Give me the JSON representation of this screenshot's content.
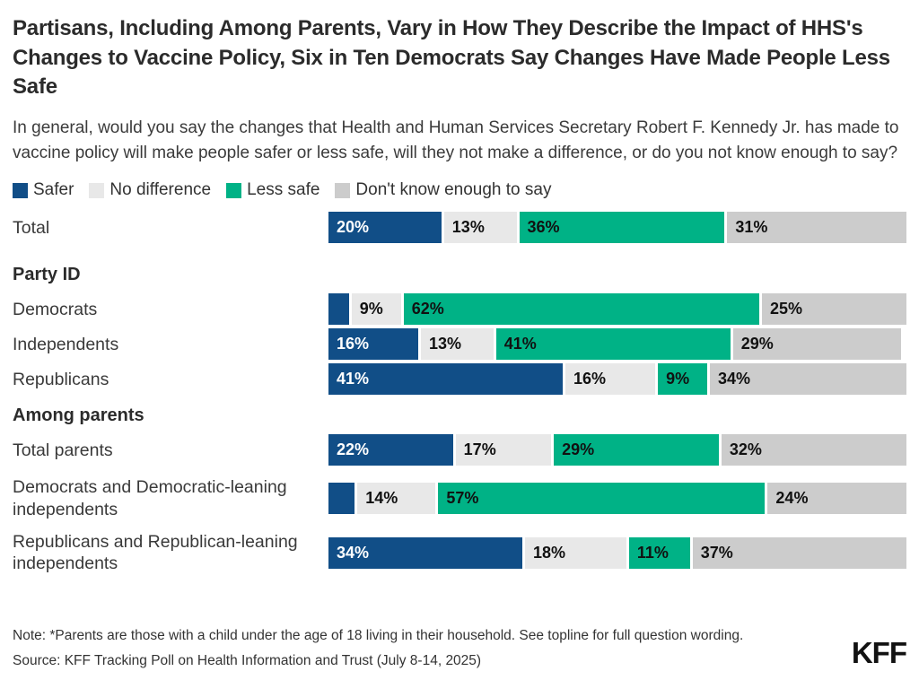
{
  "title": "Partisans, Including Among Parents, Vary in How They Describe the Impact of HHS's Changes to Vaccine Policy, Six in Ten Democrats Say Changes Have Made People Less Safe",
  "subtitle": "In general, would you say the changes that Health and Human Services Secretary Robert F. Kennedy Jr. has made to vaccine policy will make people safer or less safe, will they not make a difference, or do you not know enough to say?",
  "legend": [
    {
      "label": "Safer",
      "color": "#114e87",
      "text_color": "#ffffff"
    },
    {
      "label": "No difference",
      "color": "#e8e8e8",
      "text_color": "#111111"
    },
    {
      "label": "Less safe",
      "color": "#00b286",
      "text_color": "#111111"
    },
    {
      "label": "Don't know enough to say",
      "color": "#cccccc",
      "text_color": "#111111"
    }
  ],
  "chart_data": {
    "type": "bar",
    "orientation": "horizontal-stacked",
    "xlim": [
      0,
      100
    ],
    "units": "percent",
    "series_names": [
      "Safer",
      "No difference",
      "Less safe",
      "Don't know enough to say"
    ],
    "series_colors": [
      "#114e87",
      "#e8e8e8",
      "#00b286",
      "#cccccc"
    ],
    "rows": [
      {
        "kind": "bar",
        "category": "Total",
        "values": [
          20,
          13,
          36,
          31
        ],
        "labels": [
          "20%",
          "13%",
          "36%",
          "31%"
        ],
        "spacer_after": "md"
      },
      {
        "kind": "header",
        "category": "Party ID"
      },
      {
        "kind": "bar",
        "category": "Democrats",
        "values": [
          4,
          9,
          62,
          25
        ],
        "labels": [
          "",
          "9%",
          "62%",
          "25%"
        ]
      },
      {
        "kind": "bar",
        "category": "Independents",
        "values": [
          16,
          13,
          41,
          29
        ],
        "labels": [
          "16%",
          "13%",
          "41%",
          "29%"
        ]
      },
      {
        "kind": "bar",
        "category": "Republicans",
        "values": [
          41,
          16,
          9,
          34
        ],
        "labels": [
          "41%",
          "16%",
          "9%",
          "34%"
        ]
      },
      {
        "kind": "header",
        "category": "Among parents"
      },
      {
        "kind": "bar",
        "category": "Total parents",
        "values": [
          22,
          17,
          29,
          32
        ],
        "labels": [
          "22%",
          "17%",
          "29%",
          "32%"
        ],
        "spacer_after": "sm"
      },
      {
        "kind": "bar",
        "category": "Democrats and Democratic-leaning independents",
        "values": [
          5,
          14,
          57,
          24
        ],
        "labels": [
          "",
          "14%",
          "57%",
          "24%"
        ],
        "spacer_after": "sm"
      },
      {
        "kind": "bar",
        "category": "Republicans and Republican-leaning independents",
        "values": [
          34,
          18,
          11,
          37
        ],
        "labels": [
          "34%",
          "18%",
          "11%",
          "37%"
        ]
      }
    ]
  },
  "note": "Note: *Parents are those with a child under the age of 18 living in their household. See topline for full question wording.",
  "source": "Source: KFF Tracking Poll on Health Information and Trust (July 8-14, 2025)",
  "logo": "KFF"
}
